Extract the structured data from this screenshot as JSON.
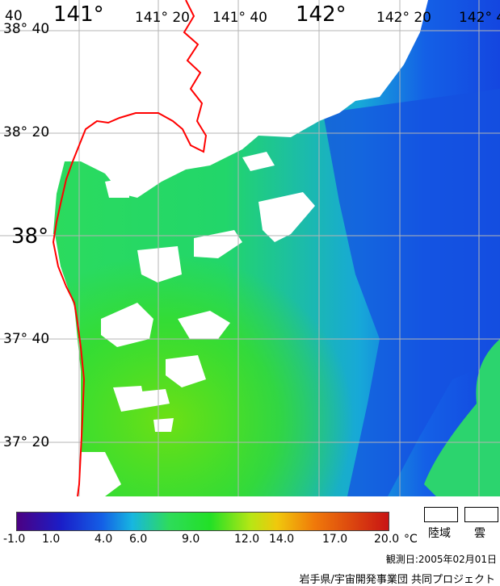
{
  "map": {
    "lon_labels_top": [
      "141°",
      "141° 20",
      "141° 40",
      "142°",
      "142° 20",
      "142° 4"
    ],
    "lat_labels_left": [
      "38° 40",
      "38° 20",
      "38°",
      "37° 40",
      "37° 20"
    ],
    "corner_fragment": "40",
    "colors": {
      "land": "#ffffff",
      "cloud": "#ffffff",
      "coast": "#ff0000",
      "grid": "#b4b4b4",
      "warm": "#22e026",
      "cold": "#1460e6"
    }
  },
  "legend": {
    "tick_labels": [
      "-1.0",
      "1.0",
      "4.0",
      "6.0",
      "9.0",
      "12.0",
      "14.0",
      "17.0",
      "20.0"
    ],
    "unit": "°C",
    "land_label": "陸域",
    "cloud_label": "雲",
    "observation_date": "観測日:2005年02月01日",
    "credit": "岩手県/宇宙開発事業団 共同プロジェクト"
  }
}
